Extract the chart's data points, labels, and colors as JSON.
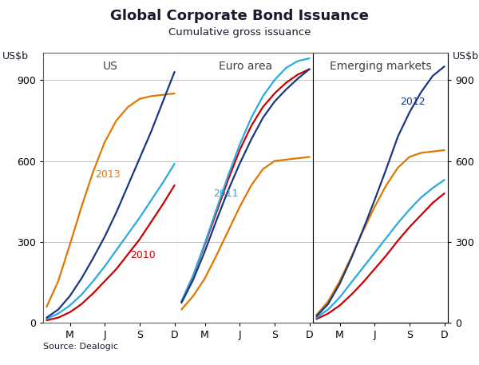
{
  "title": "Global Corporate Bond Issuance",
  "subtitle": "Cumulative gross issuance",
  "ylabel": "US$b",
  "source": "Source: Dealogic",
  "panels": [
    "US",
    "Euro area",
    "Emerging markets"
  ],
  "xtick_labels": [
    "M",
    "J",
    "S",
    "D"
  ],
  "ylim": [
    0,
    1000
  ],
  "yticks": [
    0,
    300,
    600,
    900
  ],
  "colors": {
    "2010": "#cc0000",
    "2011": "#29aae2",
    "2012": "#1a3880",
    "2013": "#e07800"
  },
  "panel_title_color": "#404040",
  "us_data": {
    "2010": [
      10,
      20,
      40,
      70,
      110,
      155,
      200,
      255,
      310,
      375,
      440,
      510
    ],
    "2011": [
      15,
      35,
      65,
      105,
      155,
      210,
      270,
      330,
      390,
      455,
      520,
      590
    ],
    "2012": [
      20,
      50,
      100,
      165,
      240,
      320,
      410,
      510,
      610,
      710,
      820,
      930
    ],
    "2013": [
      60,
      155,
      290,
      430,
      560,
      670,
      750,
      800,
      830,
      840,
      845,
      850
    ]
  },
  "euro_data": {
    "2010": [
      80,
      175,
      290,
      410,
      530,
      640,
      730,
      800,
      850,
      890,
      920,
      940
    ],
    "2011": [
      80,
      175,
      295,
      420,
      545,
      660,
      760,
      840,
      900,
      945,
      970,
      980
    ],
    "2012": [
      75,
      160,
      265,
      380,
      490,
      590,
      680,
      760,
      820,
      865,
      905,
      940
    ],
    "2013": [
      50,
      100,
      165,
      250,
      340,
      430,
      510,
      570,
      600,
      605,
      610,
      615
    ]
  },
  "em_data": {
    "2010": [
      15,
      35,
      65,
      105,
      150,
      200,
      250,
      305,
      355,
      400,
      445,
      480
    ],
    "2011": [
      20,
      50,
      95,
      150,
      205,
      260,
      315,
      370,
      420,
      465,
      500,
      530
    ],
    "2012": [
      25,
      70,
      145,
      240,
      345,
      455,
      570,
      690,
      780,
      855,
      915,
      950
    ],
    "2013": [
      30,
      80,
      155,
      245,
      340,
      430,
      510,
      575,
      615,
      630,
      635,
      640
    ]
  },
  "us_label_2013": {
    "xi": 4,
    "y": 540
  },
  "us_label_2010": {
    "xi": 7,
    "y": 240
  },
  "euro_label_2011": {
    "xi": 3,
    "y": 470
  },
  "em_label_2012": {
    "xi": 8,
    "y": 810
  }
}
